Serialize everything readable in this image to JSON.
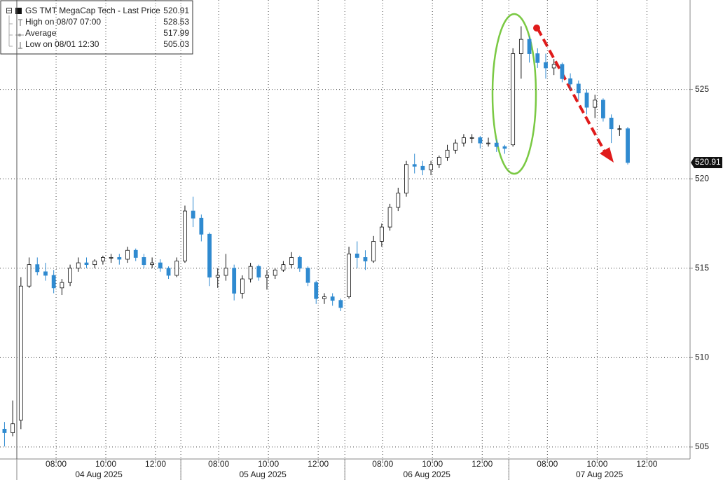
{
  "chart_data": {
    "type": "candlestick",
    "legend": [
      {
        "label": "GS TMT MegaCap Tech - Last Price",
        "value": 520.91
      },
      {
        "label": "High on 08/07 07:00",
        "value": 528.53
      },
      {
        "label": "Average",
        "value": 517.99
      },
      {
        "label": "Low on 08/01 12:30",
        "value": 505.03
      }
    ],
    "open": [
      506.0,
      505.8,
      506.5,
      514.0,
      515.2,
      514.8,
      514.6,
      513.9,
      514.2,
      515.0,
      515.3,
      515.2,
      515.4,
      515.6,
      515.6,
      515.5,
      516.0,
      515.6,
      515.2,
      515.3,
      515.0,
      514.6,
      515.4,
      518.2,
      517.8,
      516.9,
      514.5,
      514.6,
      515.0,
      513.6,
      514.4,
      515.1,
      514.5,
      514.6,
      514.9,
      515.2,
      515.6,
      515.0,
      514.2,
      513.3,
      513.4,
      513.2,
      513.4,
      515.8,
      515.6,
      515.4,
      516.5,
      517.3,
      518.4,
      519.2,
      520.8,
      520.7,
      520.5,
      520.8,
      521.2,
      521.6,
      522.0,
      522.3,
      522.3,
      522.0,
      522.0,
      521.8,
      521.9,
      527.0,
      527.8,
      527.0,
      526.5,
      526.2,
      526.4,
      525.6,
      525.3,
      524.8,
      524.0,
      524.4,
      523.4,
      522.8,
      522.8
    ],
    "high": [
      506.4,
      507.6,
      514.5,
      515.6,
      515.6,
      515.3,
      514.9,
      514.4,
      515.2,
      515.6,
      515.6,
      515.5,
      515.7,
      515.8,
      515.8,
      516.2,
      516.1,
      515.8,
      515.6,
      515.5,
      515.1,
      515.6,
      518.5,
      519.0,
      518.0,
      517.0,
      515.0,
      515.8,
      515.2,
      514.6,
      515.3,
      515.2,
      514.9,
      515.0,
      515.4,
      515.9,
      515.7,
      515.1,
      514.3,
      513.6,
      513.6,
      513.3,
      516.2,
      516.5,
      516.0,
      516.8,
      517.5,
      518.6,
      519.5,
      521.0,
      521.4,
      521.0,
      521.0,
      521.3,
      521.9,
      522.2,
      522.5,
      522.5,
      522.4,
      522.3,
      522.2,
      521.9,
      527.3,
      528.53,
      528.0,
      527.3,
      527.0,
      526.7,
      526.5,
      525.9,
      525.5,
      525.0,
      524.7,
      524.5,
      523.6,
      523.0,
      522.9
    ],
    "low": [
      505.03,
      505.6,
      506.0,
      513.9,
      514.6,
      514.3,
      513.6,
      513.5,
      514.0,
      514.8,
      515.0,
      515.0,
      515.2,
      515.3,
      515.2,
      515.3,
      515.4,
      515.0,
      515.0,
      514.8,
      514.4,
      514.5,
      515.3,
      517.3,
      516.5,
      514.0,
      513.9,
      514.3,
      513.2,
      513.3,
      514.2,
      514.3,
      513.8,
      514.4,
      514.8,
      515.0,
      514.8,
      514.0,
      513.0,
      513.0,
      512.9,
      512.6,
      513.3,
      515.0,
      514.9,
      515.3,
      516.2,
      517.1,
      518.2,
      519.0,
      520.3,
      520.2,
      520.2,
      520.6,
      521.0,
      521.4,
      521.8,
      522.0,
      521.7,
      521.8,
      521.5,
      521.4,
      521.8,
      525.6,
      526.5,
      526.2,
      525.6,
      525.8,
      525.4,
      525.0,
      524.4,
      523.6,
      523.4,
      523.2,
      522.0,
      522.4,
      520.8
    ],
    "close": [
      505.8,
      506.3,
      514.0,
      515.2,
      514.8,
      514.6,
      513.9,
      514.2,
      515.0,
      515.3,
      515.2,
      515.4,
      515.6,
      515.6,
      515.5,
      516.0,
      515.6,
      515.2,
      515.3,
      515.0,
      514.6,
      515.4,
      518.2,
      517.8,
      516.9,
      514.5,
      514.6,
      515.0,
      513.6,
      514.4,
      515.1,
      514.5,
      514.6,
      514.9,
      515.2,
      515.6,
      515.0,
      514.2,
      513.3,
      513.4,
      513.2,
      512.8,
      515.8,
      515.6,
      515.4,
      516.5,
      517.3,
      518.4,
      519.2,
      520.8,
      520.7,
      520.5,
      520.8,
      521.2,
      521.6,
      522.0,
      522.3,
      522.3,
      522.0,
      522.0,
      521.8,
      521.7,
      527.0,
      527.8,
      527.0,
      526.5,
      526.2,
      526.4,
      525.6,
      525.3,
      524.8,
      524.0,
      524.4,
      523.4,
      522.8,
      522.8,
      520.91
    ],
    "up_color": "#ffffff",
    "down_color": "#2f8ad0",
    "ylim": [
      504.33,
      530
    ],
    "yticks": [
      505,
      510,
      515,
      520,
      525
    ],
    "xlim": [
      -0.55,
      83.6
    ],
    "xticks": [
      {
        "value": 6.29,
        "label": "08:00"
      },
      {
        "value": 12.35,
        "label": "10:00"
      },
      {
        "value": 18.42,
        "label": "12:00"
      },
      {
        "value": 26.12,
        "label": "08:00"
      },
      {
        "value": 32.18,
        "label": "10:00"
      },
      {
        "value": 38.25,
        "label": "12:00"
      },
      {
        "value": 46.12,
        "label": "08:00"
      },
      {
        "value": 52.18,
        "label": "10:00"
      },
      {
        "value": 58.25,
        "label": "12:00"
      },
      {
        "value": 66.2,
        "label": "08:00"
      },
      {
        "value": 72.27,
        "label": "10:00"
      },
      {
        "value": 78.34,
        "label": "12:00"
      }
    ],
    "days": [
      "04 Aug 2025",
      "05 Aug 2025",
      "06 Aug 2025",
      "07 Aug 2025"
    ],
    "grid": true
  }
}
